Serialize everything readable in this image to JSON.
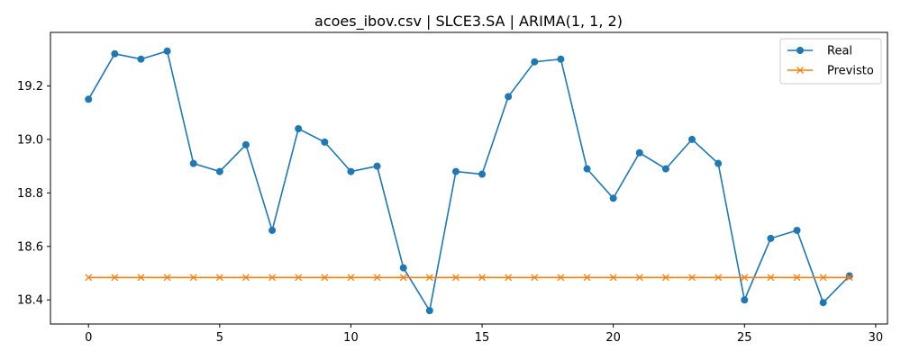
{
  "chart_data": {
    "type": "line",
    "title": "acoes_ibov.csv | SLCE3.SA | ARIMA(1, 1, 2)",
    "xlabel": "",
    "ylabel": "",
    "xlim": [
      -1.45,
      30.45
    ],
    "ylim": [
      18.31,
      19.4
    ],
    "xticks": [
      0,
      5,
      10,
      15,
      20,
      25,
      30
    ],
    "yticks": [
      18.4,
      18.6,
      18.8,
      19.0,
      19.2
    ],
    "grid": false,
    "legend_position": "top-right",
    "x": [
      0,
      1,
      2,
      3,
      4,
      5,
      6,
      7,
      8,
      9,
      10,
      11,
      12,
      13,
      14,
      15,
      16,
      17,
      18,
      19,
      20,
      21,
      22,
      23,
      24,
      25,
      26,
      27,
      28,
      29
    ],
    "series": [
      {
        "name": "Real",
        "color": "#1f77b4",
        "marker": "circle",
        "values": [
          19.15,
          19.32,
          19.3,
          19.33,
          18.91,
          18.88,
          18.98,
          18.66,
          19.04,
          18.99,
          18.88,
          18.9,
          18.52,
          18.36,
          18.88,
          18.87,
          19.16,
          19.29,
          19.3,
          18.89,
          18.78,
          18.95,
          18.89,
          19.0,
          18.91,
          18.4,
          18.63,
          18.66,
          18.39,
          18.49
        ]
      },
      {
        "name": "Previsto",
        "color": "#ff7f0e",
        "marker": "x",
        "values": [
          18.484,
          18.484,
          18.484,
          18.484,
          18.484,
          18.484,
          18.484,
          18.484,
          18.484,
          18.484,
          18.484,
          18.484,
          18.484,
          18.484,
          18.484,
          18.484,
          18.484,
          18.484,
          18.484,
          18.484,
          18.484,
          18.484,
          18.484,
          18.484,
          18.484,
          18.484,
          18.484,
          18.484,
          18.484,
          18.484
        ]
      }
    ]
  }
}
